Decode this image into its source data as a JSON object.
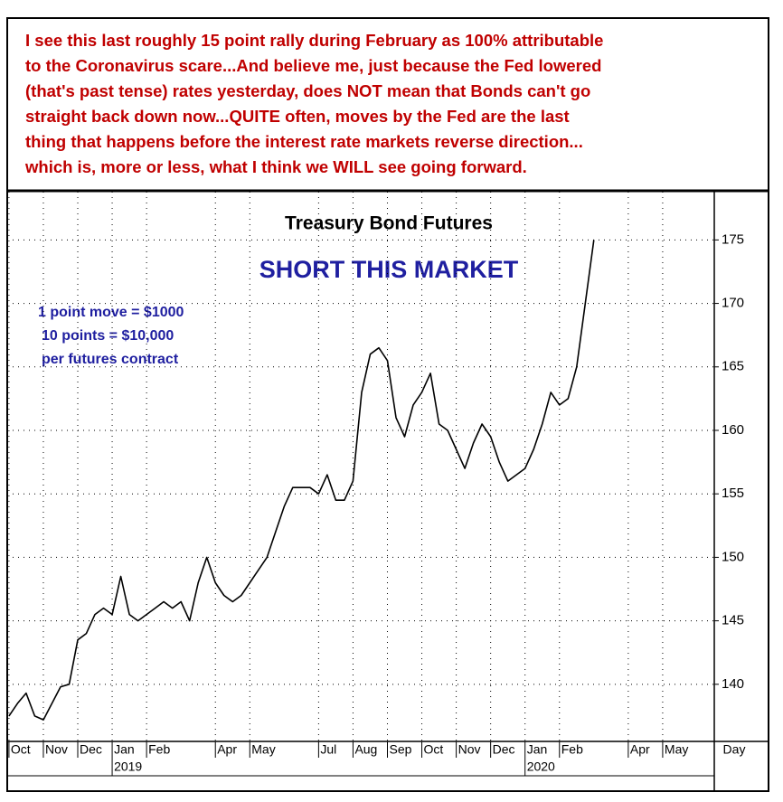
{
  "annotation": {
    "lines": [
      "I see this last roughly 15 point rally during February as 100% attributable",
      "to the Coronavirus scare...And believe me, just because the Fed lowered",
      "(that's past tense) rates yesterday, does NOT mean that Bonds can't go",
      "straight back down now...QUITE often, moves by the Fed are the last",
      "thing that happens before the interest rate markets reverse direction...",
      "which is, more or less, what I think we WILL see going forward."
    ]
  },
  "chart_data": {
    "type": "line",
    "title": "Treasury Bond Futures",
    "subtitle": "SHORT THIS MARKET",
    "notes": [
      "1 point move = $1000",
      "10 points = $10,000",
      "per futures contract"
    ],
    "x_label": "Day",
    "years": [
      {
        "value": 3,
        "label": "2019"
      },
      {
        "value": 15,
        "label": "2020"
      }
    ],
    "series": [
      {
        "name": "Treasury Bond Futures",
        "color": "#000000",
        "x": [
          0,
          0.25,
          0.5,
          0.75,
          1,
          1.25,
          1.5,
          1.75,
          2,
          2.25,
          2.5,
          2.75,
          3,
          3.25,
          3.5,
          3.75,
          4,
          4.25,
          4.5,
          4.75,
          5,
          5.25,
          5.5,
          5.75,
          6,
          6.25,
          6.5,
          6.75,
          7,
          7.25,
          7.5,
          7.75,
          8,
          8.25,
          8.5,
          8.75,
          9,
          9.25,
          9.5,
          9.75,
          10,
          10.25,
          10.5,
          10.75,
          11,
          11.25,
          11.5,
          11.75,
          12,
          12.25,
          12.5,
          12.75,
          13,
          13.25,
          13.5,
          13.75,
          14,
          14.25,
          14.5,
          14.75,
          15,
          15.25,
          15.5,
          15.75,
          16,
          16.25,
          16.5,
          16.75,
          17
        ],
        "values": [
          137.5,
          138.5,
          139.3,
          137.5,
          137.2,
          138.5,
          139.8,
          140,
          143.5,
          144,
          145.5,
          146,
          145.5,
          148.5,
          145.5,
          145,
          145.5,
          146,
          146.5,
          146,
          146.5,
          145,
          148,
          150,
          148,
          147,
          146.5,
          147,
          148,
          149,
          150,
          152,
          154,
          155.5,
          155.5,
          155.5,
          155,
          156.5,
          154.5,
          154.5,
          156,
          163,
          166,
          166.5,
          165.5,
          161,
          159.5,
          162,
          163,
          164.5,
          160.5,
          160,
          158.5,
          157,
          159,
          160.5,
          159.5,
          157.5,
          156,
          156.5,
          157,
          158.5,
          160.5,
          163,
          162,
          162.5,
          165,
          170,
          175
        ]
      }
    ],
    "xlim": [
      -0.05,
      20.5
    ],
    "xticks": [
      {
        "value": 0,
        "label": "Oct"
      },
      {
        "value": 1,
        "label": "Nov"
      },
      {
        "value": 2,
        "label": "Dec"
      },
      {
        "value": 3,
        "label": "Jan"
      },
      {
        "value": 4,
        "label": "Feb"
      },
      {
        "value": 6,
        "label": "Apr"
      },
      {
        "value": 7,
        "label": "May"
      },
      {
        "value": 9,
        "label": "Jul"
      },
      {
        "value": 10,
        "label": "Aug"
      },
      {
        "value": 11,
        "label": "Sep"
      },
      {
        "value": 12,
        "label": "Oct"
      },
      {
        "value": 13,
        "label": "Nov"
      },
      {
        "value": 14,
        "label": "Dec"
      },
      {
        "value": 15,
        "label": "Jan"
      },
      {
        "value": 16,
        "label": "Feb"
      },
      {
        "value": 18,
        "label": "Apr"
      },
      {
        "value": 19,
        "label": "May"
      }
    ],
    "ylim": [
      135.5,
      178.8
    ],
    "yticks": [
      140,
      145,
      150,
      155,
      160,
      165,
      170,
      175
    ],
    "grid": true
  }
}
